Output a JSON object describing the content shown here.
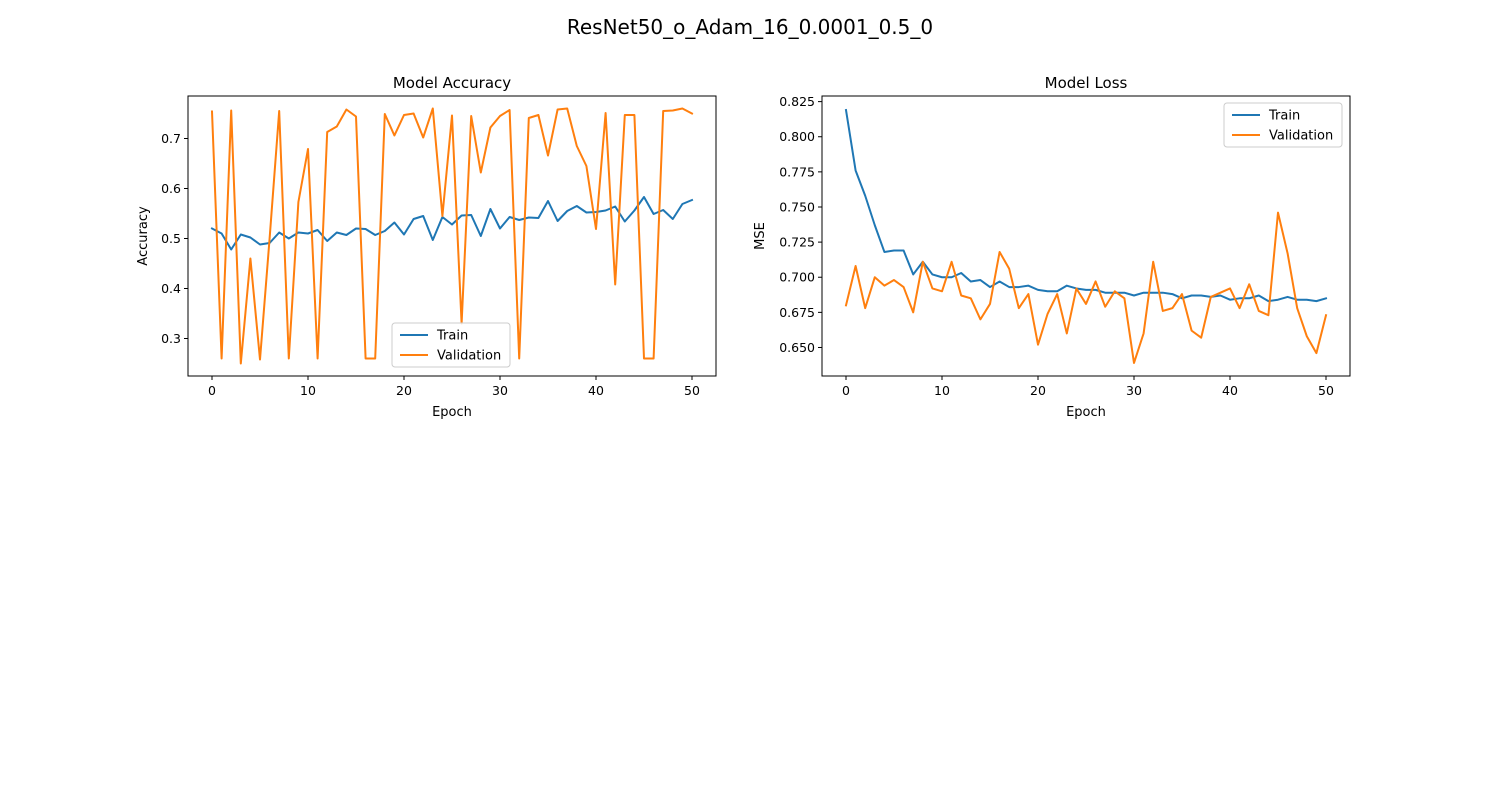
{
  "figure": {
    "suptitle": "ResNet50_o_Adam_16_0.0001_0.5_0"
  },
  "colors": {
    "train": "#1f77b4",
    "validation": "#ff7f0e"
  },
  "chart_data": [
    {
      "type": "line",
      "title": "Model Accuracy",
      "xlabel": "Epoch",
      "ylabel": "Accuracy",
      "xlim": [
        -2.5,
        52.5
      ],
      "ylim": [
        0.225,
        0.785
      ],
      "xticks": [
        0,
        10,
        20,
        30,
        40,
        50
      ],
      "yticks": [
        0.3,
        0.4,
        0.5,
        0.6,
        0.7
      ],
      "ytick_labels": [
        "0.3",
        "0.4",
        "0.5",
        "0.6",
        "0.7"
      ],
      "legend_position": "lower-center",
      "grid": false,
      "series": [
        {
          "name": "Train",
          "color": "#1f77b4",
          "values": [
            0.52,
            0.51,
            0.478,
            0.508,
            0.502,
            0.488,
            0.491,
            0.512,
            0.5,
            0.512,
            0.51,
            0.517,
            0.495,
            0.512,
            0.507,
            0.52,
            0.519,
            0.507,
            0.515,
            0.532,
            0.508,
            0.539,
            0.545,
            0.497,
            0.543,
            0.528,
            0.546,
            0.547,
            0.505,
            0.559,
            0.52,
            0.543,
            0.537,
            0.542,
            0.541,
            0.575,
            0.535,
            0.555,
            0.565,
            0.552,
            0.553,
            0.556,
            0.564,
            0.534,
            0.556,
            0.583,
            0.549,
            0.557,
            0.539,
            0.569,
            0.577
          ]
        },
        {
          "name": "Validation",
          "color": "#ff7f0e",
          "values": [
            0.754,
            0.26,
            0.756,
            0.25,
            0.46,
            0.258,
            0.5,
            0.755,
            0.26,
            0.573,
            0.679,
            0.26,
            0.713,
            0.724,
            0.758,
            0.744,
            0.26,
            0.26,
            0.749,
            0.706,
            0.747,
            0.75,
            0.702,
            0.76,
            0.545,
            0.746,
            0.33,
            0.745,
            0.632,
            0.722,
            0.745,
            0.757,
            0.26,
            0.741,
            0.747,
            0.666,
            0.758,
            0.76,
            0.685,
            0.645,
            0.519,
            0.751,
            0.408,
            0.747,
            0.747,
            0.26,
            0.26,
            0.755,
            0.756,
            0.76,
            0.75
          ]
        }
      ]
    },
    {
      "type": "line",
      "title": "Model Loss",
      "xlabel": "Epoch",
      "ylabel": "MSE",
      "xlim": [
        -2.5,
        52.5
      ],
      "ylim": [
        0.6297,
        0.829
      ],
      "xticks": [
        0,
        10,
        20,
        30,
        40,
        50
      ],
      "yticks": [
        0.65,
        0.675,
        0.7,
        0.725,
        0.75,
        0.775,
        0.8,
        0.825
      ],
      "ytick_labels": [
        "0.650",
        "0.675",
        "0.700",
        "0.725",
        "0.750",
        "0.775",
        "0.800",
        "0.825"
      ],
      "legend_position": "upper-right",
      "grid": false,
      "series": [
        {
          "name": "Train",
          "color": "#1f77b4",
          "values": [
            0.819,
            0.776,
            0.758,
            0.737,
            0.718,
            0.719,
            0.719,
            0.702,
            0.711,
            0.702,
            0.7,
            0.7,
            0.703,
            0.697,
            0.698,
            0.693,
            0.697,
            0.693,
            0.693,
            0.694,
            0.691,
            0.69,
            0.69,
            0.694,
            0.692,
            0.691,
            0.691,
            0.689,
            0.689,
            0.689,
            0.687,
            0.689,
            0.689,
            0.689,
            0.688,
            0.685,
            0.687,
            0.687,
            0.686,
            0.687,
            0.684,
            0.685,
            0.685,
            0.687,
            0.683,
            0.684,
            0.686,
            0.684,
            0.684,
            0.683,
            0.685
          ]
        },
        {
          "name": "Validation",
          "color": "#ff7f0e",
          "values": [
            0.68,
            0.708,
            0.678,
            0.7,
            0.694,
            0.698,
            0.693,
            0.675,
            0.711,
            0.692,
            0.69,
            0.711,
            0.687,
            0.685,
            0.67,
            0.681,
            0.718,
            0.706,
            0.678,
            0.688,
            0.652,
            0.674,
            0.688,
            0.66,
            0.692,
            0.681,
            0.697,
            0.679,
            0.69,
            0.685,
            0.639,
            0.66,
            0.711,
            0.676,
            0.678,
            0.688,
            0.662,
            0.657,
            0.686,
            0.689,
            0.692,
            0.678,
            0.695,
            0.676,
            0.673,
            0.746,
            0.717,
            0.678,
            0.658,
            0.646,
            0.673
          ]
        }
      ]
    }
  ]
}
